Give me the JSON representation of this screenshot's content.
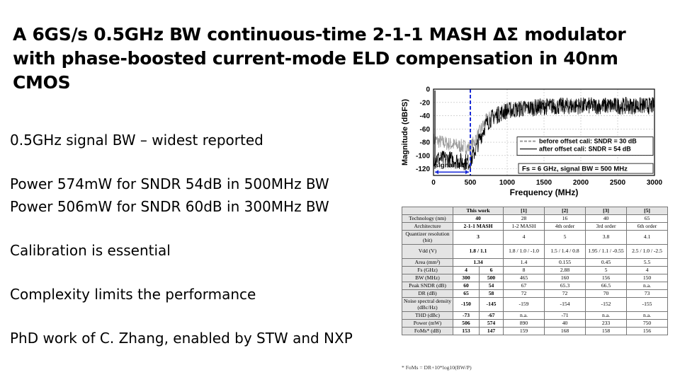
{
  "title": "A 6GS/s 0.5GHz BW continuous-time 2-1-1 MASH ΔΣ modulator with phase-boosted current-mode ELD compensation in 40nm CMOS",
  "bullets": [
    "0.5GHz signal BW – widest reported",
    "Power 574mW for SNDR 54dB in 500MHz BW",
    "Power 506mW for SNDR 60dB in 300MHz BW",
    "Calibration is essential",
    "Complexity limits the performance",
    "PhD work of C. Zhang, enabled by STW and NXP"
  ],
  "chart_data": {
    "type": "line",
    "xlabel": "Frequency (MHz)",
    "ylabel": "Magnitude (dBFS)",
    "xlim": [
      0,
      3000
    ],
    "ylim": [
      -130,
      0
    ],
    "xticks": [
      "0",
      "500",
      "1000",
      "1500",
      "2000",
      "2500",
      "3000"
    ],
    "yticks": [
      "0",
      "-20",
      "-40",
      "-60",
      "-80",
      "-100",
      "-120"
    ],
    "grid": true,
    "legend_position": "bottom-right",
    "series": [
      {
        "name": "before offset cali: SNDR = 30 dB",
        "color": "#9a9a9a",
        "x": [
          0,
          100,
          200,
          300,
          400,
          500,
          600,
          700,
          800,
          1000,
          1500,
          2000,
          2500,
          3000
        ],
        "y": [
          -72,
          -75,
          -78,
          -80,
          -82,
          -84,
          -66,
          -45,
          -35,
          -26,
          -21,
          -20,
          -20,
          -20
        ]
      },
      {
        "name": "after offset cali: SNDR = 54 dB",
        "color": "#000000",
        "x": [
          0,
          100,
          200,
          300,
          400,
          500,
          600,
          700,
          800,
          1000,
          1500,
          2000,
          2500,
          3000
        ],
        "y": [
          -98,
          -100,
          -100,
          -102,
          -104,
          -105,
          -78,
          -50,
          -37,
          -27,
          -21,
          -20,
          -20,
          -20
        ]
      }
    ],
    "annotations": {
      "bandwidth_marker_x": 500,
      "bw_label": "signal BW",
      "info_box": "Fs = 6 GHz, signal BW = 500 MHz"
    }
  },
  "table": {
    "headers": [
      "",
      "This work",
      "[1]",
      "[2]",
      "[3]",
      "[5]"
    ],
    "rows": [
      {
        "label": "Technology (nm)",
        "cells": [
          {
            "text": "40",
            "span": 2
          },
          {
            "text": "28"
          },
          {
            "text": "16"
          },
          {
            "text": "40"
          },
          {
            "text": "65"
          }
        ]
      },
      {
        "label": "Architecture",
        "cells": [
          {
            "text": "2-1-1 MASH",
            "span": 2
          },
          {
            "text": "1-2 MASH"
          },
          {
            "text": "4th order"
          },
          {
            "text": "3rd order"
          },
          {
            "text": "6th order"
          }
        ]
      },
      {
        "label": "Quantizer resolution (bit)",
        "tall": true,
        "cells": [
          {
            "text": "3",
            "span": 2
          },
          {
            "text": "4"
          },
          {
            "text": "5"
          },
          {
            "text": "3.8"
          },
          {
            "text": "4.1"
          }
        ]
      },
      {
        "label": "Vdd (V)",
        "tall": true,
        "cells": [
          {
            "text": "1.8 / 1.1",
            "span": 2
          },
          {
            "text": "1.8 / 1.0 / -1.0"
          },
          {
            "text": "1.5 / 1.4 / 0.8"
          },
          {
            "text": "1.95 / 1.1 / -0.55"
          },
          {
            "text": "2.5 / 1.0 / -2.5"
          }
        ]
      },
      {
        "label": "Area (mm²)",
        "cells": [
          {
            "text": "1.34",
            "span": 2
          },
          {
            "text": "1.4"
          },
          {
            "text": "0.155"
          },
          {
            "text": "0.45"
          },
          {
            "text": "5.5"
          }
        ]
      },
      {
        "label": "Fs (GHz)",
        "cells": [
          {
            "text": "4"
          },
          {
            "text": "6"
          },
          {
            "text": "8"
          },
          {
            "text": "2.88"
          },
          {
            "text": "5"
          },
          {
            "text": "4"
          }
        ]
      },
      {
        "label": "BW (MHz)",
        "cells": [
          {
            "text": "300"
          },
          {
            "text": "500"
          },
          {
            "text": "465"
          },
          {
            "text": "160"
          },
          {
            "text": "156"
          },
          {
            "text": "150"
          }
        ]
      },
      {
        "label": "Peak SNDR (dB)",
        "cells": [
          {
            "text": "60"
          },
          {
            "text": "54"
          },
          {
            "text": "67"
          },
          {
            "text": "65.3"
          },
          {
            "text": "66.5"
          },
          {
            "text": "n.a."
          }
        ]
      },
      {
        "label": "DR (dB)",
        "cells": [
          {
            "text": "65"
          },
          {
            "text": "58"
          },
          {
            "text": "72"
          },
          {
            "text": "72"
          },
          {
            "text": "70"
          },
          {
            "text": "73"
          }
        ]
      },
      {
        "label": "Noise spectral density (dBc/Hz)",
        "tall": true,
        "cells": [
          {
            "text": "-150"
          },
          {
            "text": "-145"
          },
          {
            "text": "-159"
          },
          {
            "text": "-154"
          },
          {
            "text": "-152"
          },
          {
            "text": "-155"
          }
        ]
      },
      {
        "label": "THD (dBc)",
        "cells": [
          {
            "text": "-73"
          },
          {
            "text": "-67"
          },
          {
            "text": "n.a."
          },
          {
            "text": "-71"
          },
          {
            "text": "n.a."
          },
          {
            "text": "n.a."
          }
        ]
      },
      {
        "label": "Power (mW)",
        "cells": [
          {
            "text": "506"
          },
          {
            "text": "574"
          },
          {
            "text": "890"
          },
          {
            "text": "40"
          },
          {
            "text": "233"
          },
          {
            "text": "750"
          }
        ]
      },
      {
        "label": "FoMs* (dB)",
        "cells": [
          {
            "text": "153"
          },
          {
            "text": "147"
          },
          {
            "text": "159"
          },
          {
            "text": "168"
          },
          {
            "text": "158"
          },
          {
            "text": "156"
          }
        ]
      }
    ],
    "footnote": "* FoMs = DR+10*log10(BW/P)"
  }
}
